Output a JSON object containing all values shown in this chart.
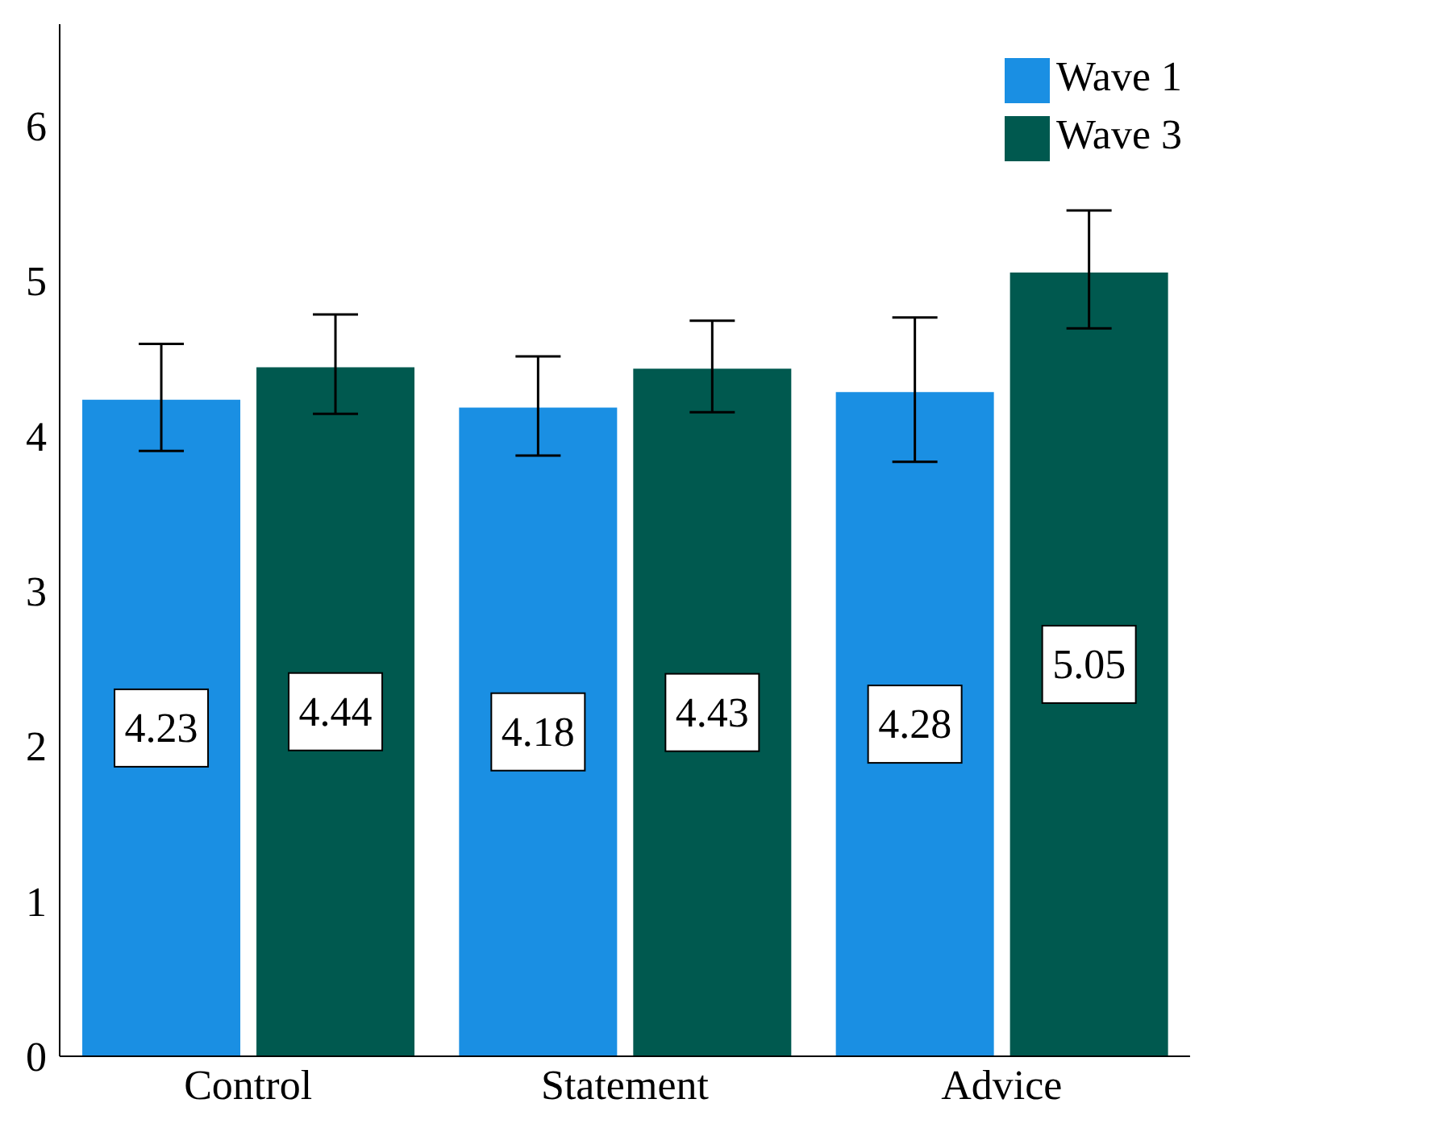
{
  "chart_data": {
    "type": "bar",
    "categories": [
      "Control",
      "Statement",
      "Advice"
    ],
    "series": [
      {
        "name": "Wave 1",
        "color": "#1a8fe3",
        "values": [
          4.23,
          4.18,
          4.28
        ],
        "errors": [
          [
            3.9,
            4.59
          ],
          [
            3.87,
            4.51
          ],
          [
            3.83,
            4.76
          ]
        ]
      },
      {
        "name": "Wave 3",
        "color": "#00594f",
        "values": [
          4.44,
          4.43,
          5.05
        ],
        "errors": [
          [
            4.14,
            4.78
          ],
          [
            4.15,
            4.74
          ],
          [
            4.69,
            5.45
          ]
        ]
      }
    ],
    "ylim": [
      0,
      6.65
    ],
    "yticks": [
      0,
      1,
      2,
      3,
      4,
      5,
      6
    ],
    "grid": false,
    "legend": "top right",
    "data_labels": true
  }
}
